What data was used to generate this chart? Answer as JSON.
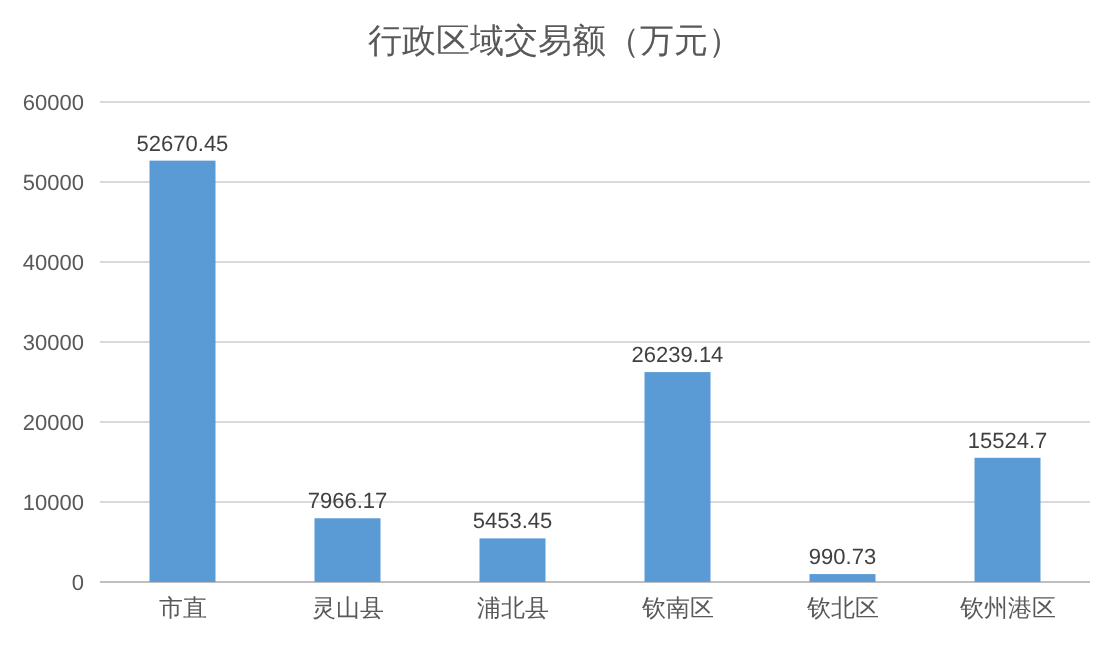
{
  "chart_data": {
    "type": "bar",
    "title": "行政区域交易额（万元）",
    "categories": [
      "市直",
      "灵山县",
      "浦北县",
      "钦南区",
      "钦北区",
      "钦州港区"
    ],
    "values": [
      52670.45,
      7966.17,
      5453.45,
      26239.14,
      990.73,
      15524.7
    ],
    "color": "#5b9bd5",
    "ylim": [
      0,
      60000
    ],
    "yticks": [
      0,
      10000,
      20000,
      30000,
      40000,
      50000,
      60000
    ],
    "grid": "y",
    "data_labels": true
  }
}
